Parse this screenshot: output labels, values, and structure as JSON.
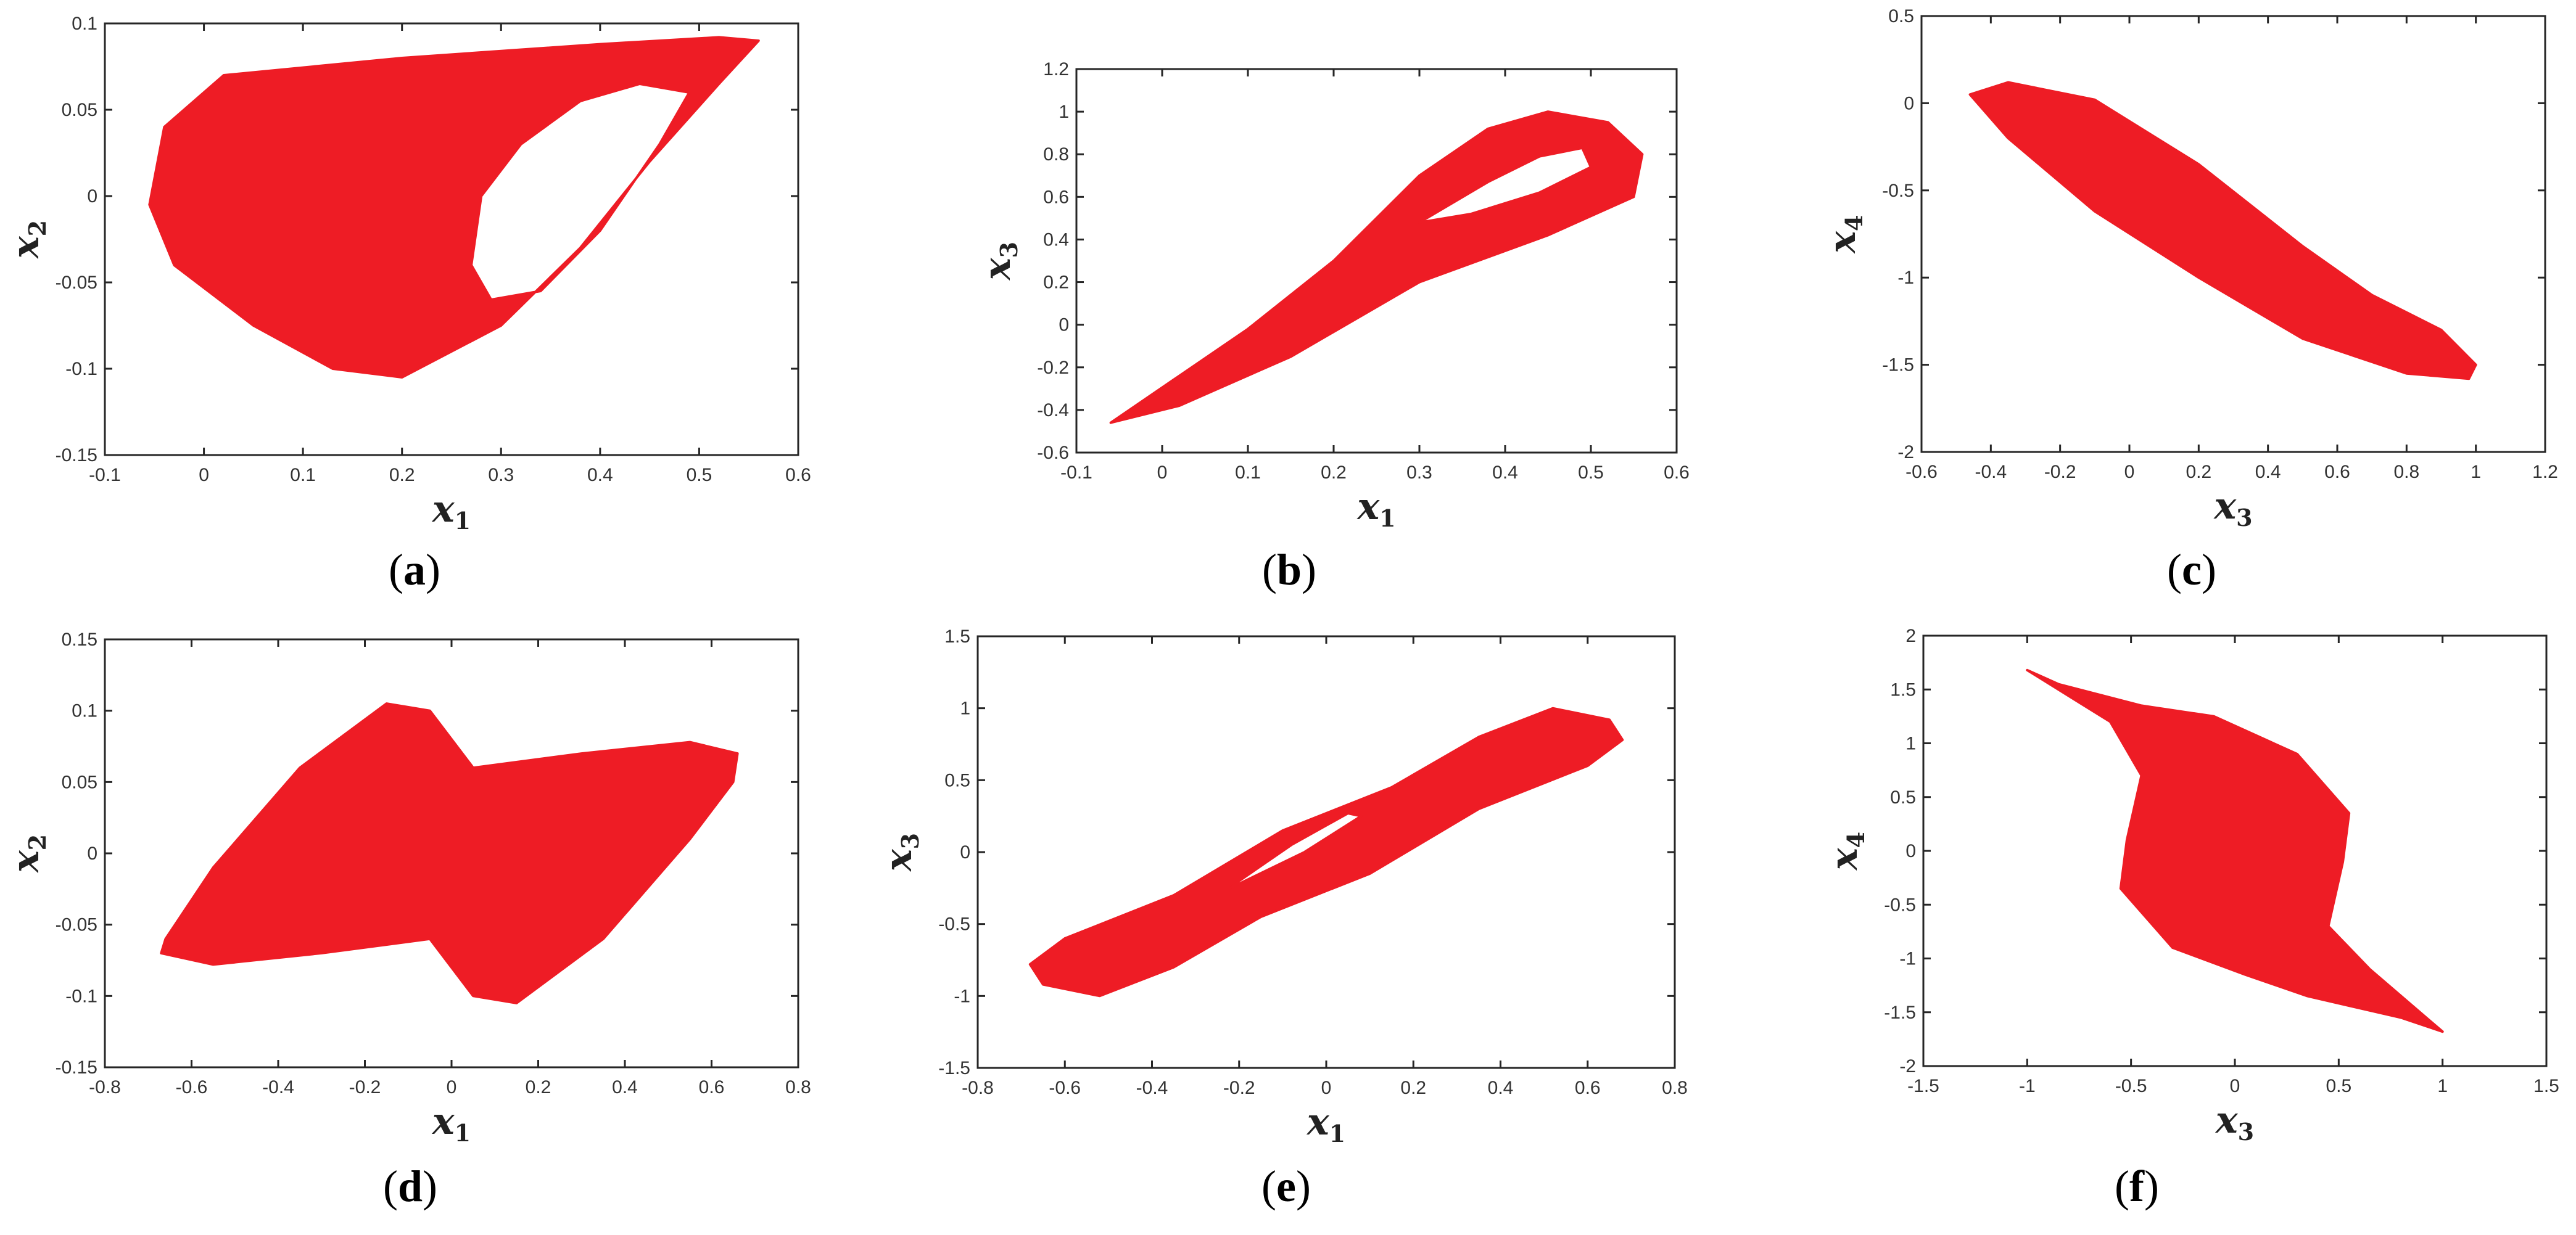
{
  "colors": {
    "attractor": "#ee1c25",
    "axes": "#262626"
  },
  "chart_data": [
    {
      "type": "scatter",
      "panel": "a",
      "caption_letter": "a",
      "xlabel": "x",
      "xlabel_sub": "1",
      "ylabel": "x",
      "ylabel_sub": "2",
      "xlim": [
        -0.1,
        0.6
      ],
      "ylim": [
        -0.15,
        0.1
      ],
      "xticks": [
        "-0.1",
        "0",
        "0.1",
        "0.2",
        "0.3",
        "0.4",
        "0.5",
        "0.6"
      ],
      "yticks": [
        "-0.15",
        "-0.1",
        "-0.05",
        "0",
        "0.05",
        "0.1"
      ],
      "outline": [
        [
          -0.04,
          0.04
        ],
        [
          0.02,
          0.07
        ],
        [
          0.2,
          0.08
        ],
        [
          0.4,
          0.088
        ],
        [
          0.52,
          0.092
        ],
        [
          0.56,
          0.09
        ],
        [
          0.52,
          0.065
        ],
        [
          0.45,
          0.02
        ],
        [
          0.38,
          -0.03
        ],
        [
          0.3,
          -0.075
        ],
        [
          0.2,
          -0.105
        ],
        [
          0.13,
          -0.1
        ],
        [
          0.05,
          -0.075
        ],
        [
          -0.03,
          -0.04
        ],
        [
          -0.055,
          -0.005
        ]
      ],
      "hole": [
        [
          0.27,
          -0.04
        ],
        [
          0.28,
          0.0
        ],
        [
          0.32,
          0.03
        ],
        [
          0.38,
          0.055
        ],
        [
          0.44,
          0.065
        ],
        [
          0.49,
          0.06
        ],
        [
          0.46,
          0.03
        ],
        [
          0.4,
          -0.02
        ],
        [
          0.34,
          -0.055
        ],
        [
          0.29,
          -0.06
        ]
      ]
    },
    {
      "type": "scatter",
      "panel": "b",
      "caption_letter": "b",
      "xlabel": "x",
      "xlabel_sub": "1",
      "ylabel": "x",
      "ylabel_sub": "3",
      "xlim": [
        -0.1,
        0.6
      ],
      "ylim": [
        -0.6,
        1.2
      ],
      "xticks": [
        "-0.1",
        "0",
        "0.1",
        "0.2",
        "0.3",
        "0.4",
        "0.5",
        "0.6"
      ],
      "yticks": [
        "-0.6",
        "-0.4",
        "-0.2",
        "0",
        "0.2",
        "0.4",
        "0.6",
        "0.8",
        "1",
        "1.2"
      ],
      "outline": [
        [
          -0.06,
          -0.46
        ],
        [
          0.1,
          -0.02
        ],
        [
          0.2,
          0.3
        ],
        [
          0.3,
          0.7
        ],
        [
          0.38,
          0.92
        ],
        [
          0.45,
          1.0
        ],
        [
          0.52,
          0.95
        ],
        [
          0.56,
          0.8
        ],
        [
          0.55,
          0.6
        ],
        [
          0.45,
          0.42
        ],
        [
          0.3,
          0.2
        ],
        [
          0.15,
          -0.15
        ],
        [
          0.02,
          -0.38
        ]
      ],
      "hole": [
        [
          0.3,
          0.48
        ],
        [
          0.38,
          0.67
        ],
        [
          0.44,
          0.79
        ],
        [
          0.49,
          0.83
        ],
        [
          0.5,
          0.74
        ],
        [
          0.44,
          0.62
        ],
        [
          0.36,
          0.52
        ]
      ]
    },
    {
      "type": "scatter",
      "panel": "c",
      "caption_letter": "c",
      "xlabel": "x",
      "xlabel_sub": "3",
      "ylabel": "x",
      "ylabel_sub": "4",
      "xlim": [
        -0.6,
        1.2
      ],
      "ylim": [
        -2,
        0.5
      ],
      "xticks": [
        "-0.6",
        "-0.4",
        "-0.2",
        "0",
        "0.2",
        "0.4",
        "0.6",
        "0.8",
        "1",
        "1.2"
      ],
      "yticks": [
        "-2",
        "-1.5",
        "-1",
        "-0.5",
        "0",
        "0.5"
      ],
      "outline": [
        [
          -0.46,
          0.05
        ],
        [
          -0.35,
          0.12
        ],
        [
          -0.1,
          0.02
        ],
        [
          0.2,
          -0.35
        ],
        [
          0.5,
          -0.82
        ],
        [
          0.7,
          -1.1
        ],
        [
          0.9,
          -1.3
        ],
        [
          1.0,
          -1.5
        ],
        [
          0.98,
          -1.58
        ],
        [
          0.8,
          -1.55
        ],
        [
          0.5,
          -1.35
        ],
        [
          0.2,
          -1.0
        ],
        [
          -0.1,
          -0.62
        ],
        [
          -0.35,
          -0.2
        ]
      ],
      "hole": []
    },
    {
      "type": "scatter",
      "panel": "d",
      "caption_letter": "d",
      "xlabel": "x",
      "xlabel_sub": "1",
      "ylabel": "x",
      "ylabel_sub": "2",
      "xlim": [
        -0.8,
        0.8
      ],
      "ylim": [
        -0.15,
        0.15
      ],
      "xticks": [
        "-0.8",
        "-0.6",
        "-0.4",
        "-0.2",
        "0",
        "0.2",
        "0.4",
        "0.6",
        "0.8"
      ],
      "yticks": [
        "-0.15",
        "-0.1",
        "-0.05",
        "0",
        "0.05",
        "0.1",
        "0.15"
      ],
      "outline": [
        [
          -0.66,
          -0.06
        ],
        [
          -0.55,
          -0.01
        ],
        [
          -0.35,
          0.06
        ],
        [
          -0.15,
          0.105
        ],
        [
          -0.05,
          0.1
        ],
        [
          0.05,
          0.06
        ],
        [
          0.3,
          0.07
        ],
        [
          0.55,
          0.078
        ],
        [
          0.66,
          0.07
        ],
        [
          0.65,
          0.05
        ],
        [
          0.55,
          0.01
        ],
        [
          0.35,
          -0.06
        ],
        [
          0.15,
          -0.105
        ],
        [
          0.05,
          -0.1
        ],
        [
          -0.05,
          -0.06
        ],
        [
          -0.3,
          -0.07
        ],
        [
          -0.55,
          -0.078
        ],
        [
          -0.67,
          -0.07
        ]
      ],
      "hole": []
    },
    {
      "type": "scatter",
      "panel": "e",
      "caption_letter": "e",
      "xlabel": "x",
      "xlabel_sub": "1",
      "ylabel": "x",
      "ylabel_sub": "3",
      "xlim": [
        -0.8,
        0.8
      ],
      "ylim": [
        -1.5,
        1.5
      ],
      "xticks": [
        "-0.8",
        "-0.6",
        "-0.4",
        "-0.2",
        "0",
        "0.2",
        "0.4",
        "0.6",
        "0.8"
      ],
      "yticks": [
        "-1.5",
        "-1",
        "-0.5",
        "0",
        "0.5",
        "1",
        "1.5"
      ],
      "outline": [
        [
          -0.68,
          -0.78
        ],
        [
          -0.6,
          -0.6
        ],
        [
          -0.35,
          -0.3
        ],
        [
          -0.1,
          0.15
        ],
        [
          0.15,
          0.45
        ],
        [
          0.35,
          0.8
        ],
        [
          0.52,
          1.0
        ],
        [
          0.65,
          0.92
        ],
        [
          0.68,
          0.78
        ],
        [
          0.6,
          0.6
        ],
        [
          0.35,
          0.3
        ],
        [
          0.1,
          -0.15
        ],
        [
          -0.15,
          -0.45
        ],
        [
          -0.35,
          -0.8
        ],
        [
          -0.52,
          -1.0
        ],
        [
          -0.65,
          -0.92
        ]
      ],
      "hole": [
        [
          -0.22,
          -0.25
        ],
        [
          -0.05,
          0.0
        ],
        [
          0.08,
          0.25
        ],
        [
          0.05,
          0.27
        ],
        [
          -0.08,
          0.05
        ],
        [
          -0.2,
          -0.2
        ]
      ]
    },
    {
      "type": "scatter",
      "panel": "f",
      "caption_letter": "f",
      "xlabel": "x",
      "xlabel_sub": "3",
      "ylabel": "x",
      "ylabel_sub": "4",
      "xlim": [
        -1.5,
        1.5
      ],
      "ylim": [
        -2,
        2
      ],
      "xticks": [
        "-1.5",
        "-1",
        "-0.5",
        "0",
        "0.5",
        "1",
        "1.5"
      ],
      "yticks": [
        "-2",
        "-1.5",
        "-1",
        "-0.5",
        "0",
        "0.5",
        "1",
        "1.5",
        "2"
      ],
      "outline": [
        [
          -1.0,
          1.68
        ],
        [
          -0.85,
          1.55
        ],
        [
          -0.45,
          1.35
        ],
        [
          -0.1,
          1.25
        ],
        [
          0.3,
          0.9
        ],
        [
          0.55,
          0.35
        ],
        [
          0.52,
          -0.1
        ],
        [
          0.45,
          -0.7
        ],
        [
          0.65,
          -1.1
        ],
        [
          1.0,
          -1.68
        ],
        [
          0.8,
          -1.55
        ],
        [
          0.35,
          -1.35
        ],
        [
          0.05,
          -1.15
        ],
        [
          -0.3,
          -0.9
        ],
        [
          -0.55,
          -0.35
        ],
        [
          -0.52,
          0.1
        ],
        [
          -0.45,
          0.7
        ],
        [
          -0.6,
          1.2
        ]
      ],
      "hole": []
    }
  ]
}
